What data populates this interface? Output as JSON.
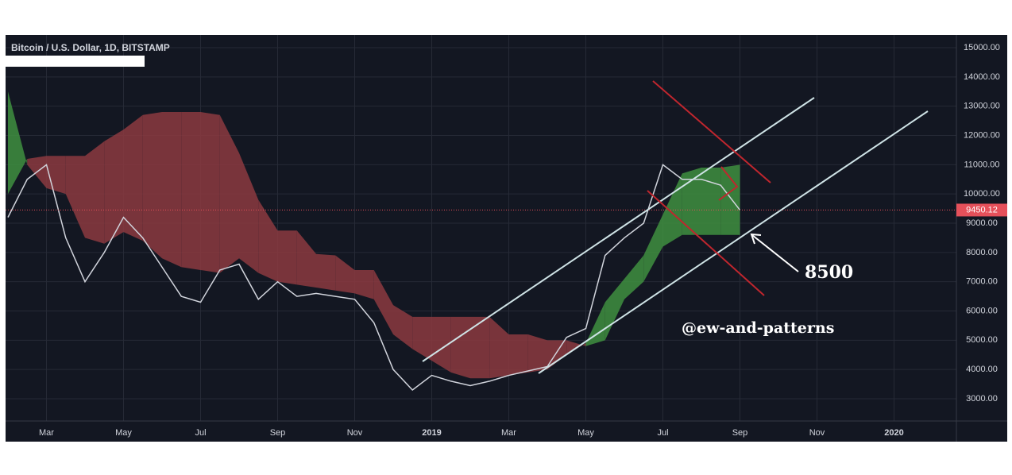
{
  "chart_data": {
    "type": "ichimoku",
    "title": "Bitcoin / U.S. Dollar, 1D, BITSTAMP",
    "categories": [
      null,
      null,
      "Mar",
      null,
      null,
      null,
      "May",
      null,
      null,
      null,
      "Jul",
      null,
      null,
      null,
      "Sep",
      null,
      null,
      null,
      "Nov",
      null,
      null,
      null,
      "2019",
      null,
      null,
      null,
      "Mar",
      null,
      null,
      null,
      "May",
      null,
      null,
      null,
      "Jul",
      null,
      null,
      null,
      "Sep",
      null,
      null,
      null,
      "Nov",
      null,
      null,
      null,
      "2020",
      null
    ],
    "price": {
      "color": "#d1d4dc",
      "values": [
        9200,
        10500,
        11000,
        8500,
        7000,
        8000,
        9200,
        8500,
        7500,
        6500,
        6300,
        7400,
        7600,
        6400,
        7000,
        6500,
        6600,
        6500,
        6400,
        5600,
        4000,
        3300,
        3800,
        3600,
        3450,
        3600,
        3800,
        3950,
        4100,
        5100,
        5400,
        7900,
        8500,
        9000,
        11000,
        10500,
        10500,
        10300,
        9450.12,
        null,
        null,
        null,
        null,
        null,
        null,
        null,
        null,
        null
      ]
    },
    "span_a": {
      "values": [
        13500,
        11000,
        10200,
        10000,
        8500,
        8300,
        8700,
        8400,
        7800,
        7500,
        7400,
        7300,
        7800,
        7300,
        7000,
        6900,
        6800,
        6700,
        6600,
        6400,
        5200,
        4700,
        4300,
        3900,
        3700,
        3700,
        3800,
        3900,
        4000,
        4500,
        4900,
        6300,
        7100,
        7900,
        9300,
        10700,
        10900,
        10900,
        11000,
        null,
        null,
        null,
        null,
        null,
        null,
        null,
        null,
        null
      ]
    },
    "span_b": {
      "values": [
        10000,
        11200,
        11300,
        11300,
        11300,
        11800,
        12200,
        12700,
        12800,
        12800,
        12800,
        12700,
        11400,
        9800,
        8750,
        8750,
        7950,
        7900,
        7400,
        7400,
        6200,
        5800,
        5800,
        5800,
        5800,
        5800,
        5200,
        5200,
        5000,
        5000,
        4800,
        5000,
        6400,
        7000,
        8200,
        8600,
        8600,
        8600,
        8600,
        null,
        null,
        null,
        null,
        null,
        null,
        null,
        null,
        null
      ]
    },
    "cloud_up_color": "#3f8f3f",
    "cloud_down_color": "#8c3a3f",
    "last_price": {
      "value": 9450.12,
      "label": "9450.12"
    },
    "last_price_color": "#e5505a",
    "ylim": [
      2240,
      15435
    ],
    "yticks": [
      {
        "value": 3000,
        "label": "3000.00"
      },
      {
        "value": 4000,
        "label": "4000.00"
      },
      {
        "value": 5000,
        "label": "5000.00"
      },
      {
        "value": 6000,
        "label": "6000.00"
      },
      {
        "value": 7000,
        "label": "7000.00"
      },
      {
        "value": 8000,
        "label": "8000.00"
      },
      {
        "value": 9000,
        "label": "9000.00"
      },
      {
        "value": 10000,
        "label": "10000.00"
      },
      {
        "value": 11000,
        "label": "11000.00"
      },
      {
        "value": 12000,
        "label": "12000.00"
      },
      {
        "value": 13000,
        "label": "13000.00"
      },
      {
        "value": 14000,
        "label": "14000.00"
      },
      {
        "value": 15000,
        "label": "15000.00"
      }
    ],
    "grid": true,
    "annotations": [
      "8500",
      "@ew-and-patterns"
    ]
  }
}
